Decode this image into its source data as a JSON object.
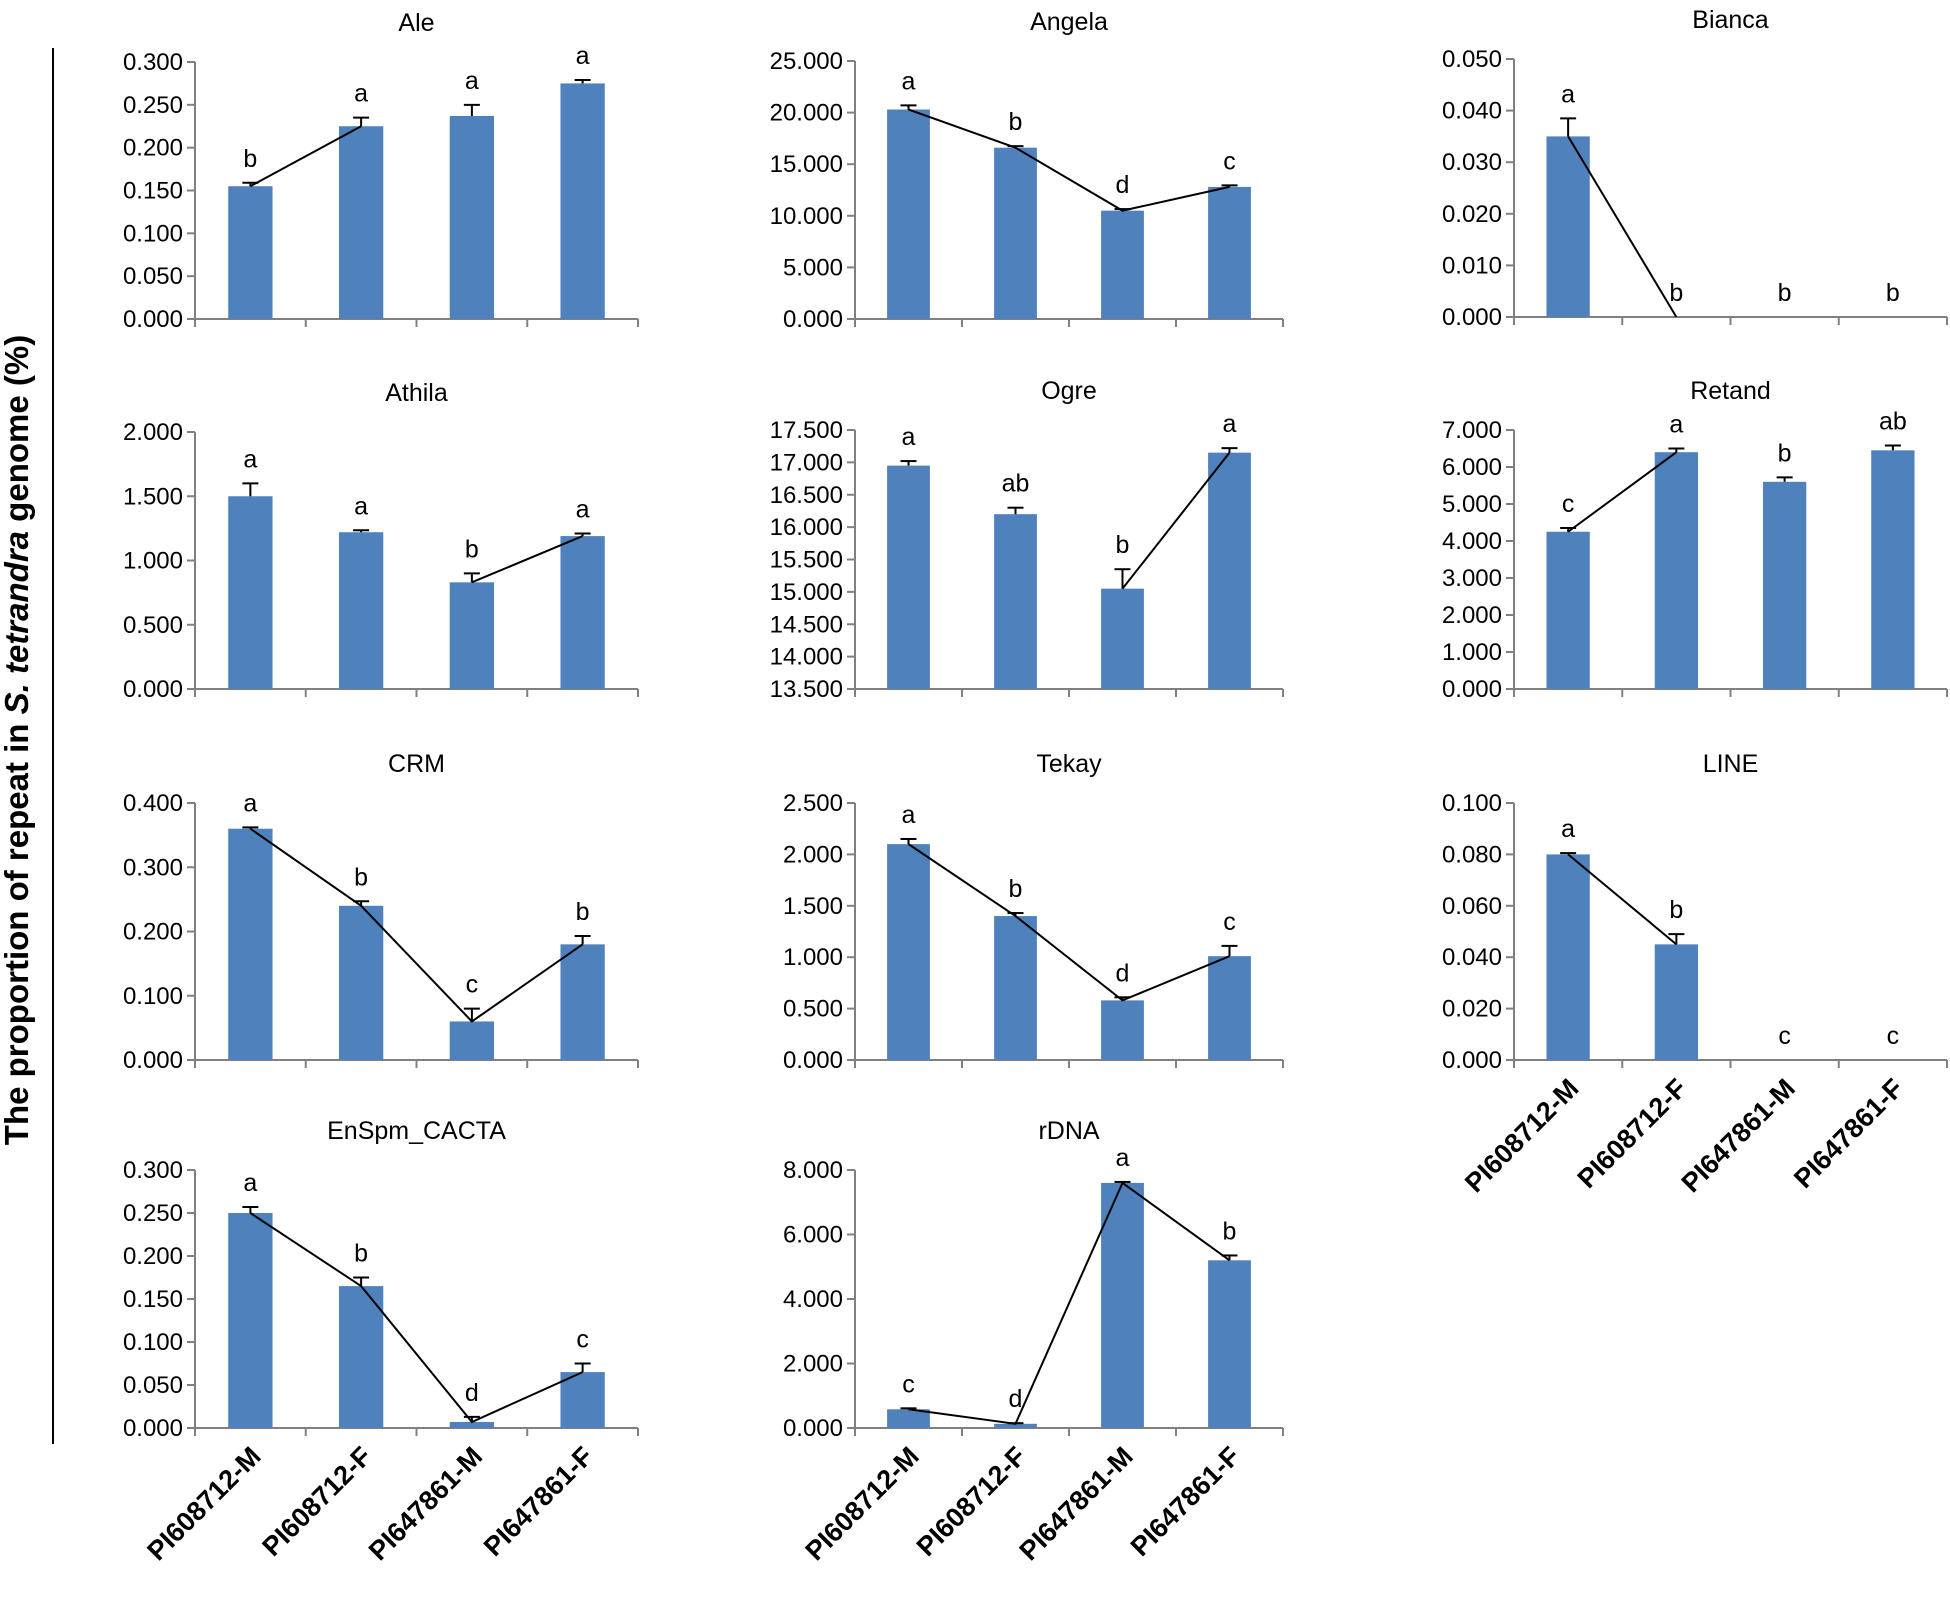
{
  "ylabel": {
    "prefix": "The proportion of repeat in ",
    "species": "S. tetrandra",
    "suffix": " genome (%)"
  },
  "colors": {
    "bar": "#4f81bd",
    "axis": "#808080",
    "line": "#000000"
  },
  "chart_data": [
    {
      "type": "bar",
      "title": "Ale",
      "categories": [
        "PI608712-M",
        "PI608712-F",
        "PI647861-M",
        "PI647861-F"
      ],
      "values": [
        0.155,
        0.225,
        0.237,
        0.275
      ],
      "errors": [
        0.004,
        0.01,
        0.013,
        0.004
      ],
      "significance": [
        "b",
        "a",
        "a",
        "a"
      ],
      "ylim": [
        0,
        0.3
      ],
      "ticks": [
        "0.000",
        "0.050",
        "0.100",
        "0.150",
        "0.200",
        "0.250",
        "0.300"
      ],
      "trend_line": [
        0,
        1
      ]
    },
    {
      "type": "bar",
      "title": "Angela",
      "categories": [
        "PI608712-M",
        "PI608712-F",
        "PI647861-M",
        "PI647861-F"
      ],
      "values": [
        20.3,
        16.6,
        10.5,
        12.8
      ],
      "errors": [
        0.4,
        0.15,
        0.15,
        0.15
      ],
      "significance": [
        "a",
        "b",
        "d",
        "c"
      ],
      "ylim": [
        0,
        25
      ],
      "ticks": [
        "0.000",
        "5.000",
        "10.000",
        "15.000",
        "20.000",
        "25.000"
      ],
      "trend_line": [
        0,
        1,
        2,
        3
      ]
    },
    {
      "type": "bar",
      "title": "Bianca",
      "categories": [
        "PI608712-M",
        "PI608712-F",
        "PI647861-M",
        "PI647861-F"
      ],
      "values": [
        0.035,
        0,
        0,
        0
      ],
      "errors": [
        0.0035,
        0,
        0,
        0
      ],
      "significance": [
        "a",
        "b",
        "b",
        "b"
      ],
      "ylim": [
        0,
        0.05
      ],
      "ticks": [
        "0.000",
        "0.010",
        "0.020",
        "0.030",
        "0.040",
        "0.050"
      ],
      "trend_line": [
        0,
        1
      ]
    },
    {
      "type": "bar",
      "title": "Athila",
      "categories": [
        "PI608712-M",
        "PI608712-F",
        "PI647861-M",
        "PI647861-F"
      ],
      "values": [
        1.5,
        1.22,
        0.83,
        1.19
      ],
      "errors": [
        0.1,
        0.015,
        0.07,
        0.02
      ],
      "significance": [
        "a",
        "a",
        "b",
        "a"
      ],
      "ylim": [
        0,
        2
      ],
      "ticks": [
        "0.000",
        "0.500",
        "1.000",
        "1.500",
        "2.000"
      ],
      "trend_line": [
        2,
        3
      ]
    },
    {
      "type": "bar",
      "title": "Ogre",
      "categories": [
        "PI608712-M",
        "PI608712-F",
        "PI647861-M",
        "PI647861-F"
      ],
      "values": [
        16.95,
        16.2,
        15.05,
        17.15
      ],
      "errors": [
        0.07,
        0.1,
        0.3,
        0.07
      ],
      "significance": [
        "a",
        "ab",
        "b",
        "a"
      ],
      "ylim": [
        13.5,
        17.5
      ],
      "ticks": [
        "13.500",
        "14.000",
        "14.500",
        "15.000",
        "15.500",
        "16.000",
        "16.500",
        "17.000",
        "17.500"
      ],
      "trend_line": [
        2,
        3
      ]
    },
    {
      "type": "bar",
      "title": "Retand",
      "categories": [
        "PI608712-M",
        "PI608712-F",
        "PI647861-M",
        "PI647861-F"
      ],
      "values": [
        4.25,
        6.4,
        5.6,
        6.45
      ],
      "errors": [
        0.1,
        0.1,
        0.12,
        0.13
      ],
      "significance": [
        "c",
        "a",
        "b",
        "ab"
      ],
      "ylim": [
        0,
        7
      ],
      "ticks": [
        "0.000",
        "1.000",
        "2.000",
        "3.000",
        "4.000",
        "5.000",
        "6.000",
        "7.000"
      ],
      "trend_line": [
        0,
        1
      ]
    },
    {
      "type": "bar",
      "title": "CRM",
      "categories": [
        "PI608712-M",
        "PI608712-F",
        "PI647861-M",
        "PI647861-F"
      ],
      "values": [
        0.36,
        0.24,
        0.06,
        0.18
      ],
      "errors": [
        0.002,
        0.007,
        0.02,
        0.013
      ],
      "significance": [
        "a",
        "b",
        "c",
        "b"
      ],
      "ylim": [
        0,
        0.4
      ],
      "ticks": [
        "0.000",
        "0.100",
        "0.200",
        "0.300",
        "0.400"
      ],
      "trend_line": [
        0,
        1,
        2,
        3
      ]
    },
    {
      "type": "bar",
      "title": "Tekay",
      "categories": [
        "PI608712-M",
        "PI608712-F",
        "PI647861-M",
        "PI647861-F"
      ],
      "values": [
        2.1,
        1.4,
        0.58,
        1.01
      ],
      "errors": [
        0.05,
        0.03,
        0.03,
        0.1
      ],
      "significance": [
        "a",
        "b",
        "d",
        "c"
      ],
      "ylim": [
        0,
        2.5
      ],
      "ticks": [
        "0.000",
        "0.500",
        "1.000",
        "1.500",
        "2.000",
        "2.500"
      ],
      "trend_line": [
        0,
        1,
        2,
        3
      ]
    },
    {
      "type": "bar",
      "title": "LINE",
      "categories": [
        "PI608712-M",
        "PI608712-F",
        "PI647861-M",
        "PI647861-F"
      ],
      "values": [
        0.08,
        0.045,
        0,
        0
      ],
      "errors": [
        0.0005,
        0.004,
        0,
        0
      ],
      "significance": [
        "a",
        "b",
        "c",
        "c"
      ],
      "ylim": [
        0,
        0.1
      ],
      "ticks": [
        "0.000",
        "0.020",
        "0.040",
        "0.060",
        "0.080",
        "0.100"
      ],
      "trend_line": [
        0,
        1
      ]
    },
    {
      "type": "bar",
      "title": "EnSpm_CACTA",
      "categories": [
        "PI608712-M",
        "PI608712-F",
        "PI647861-M",
        "PI647861-F"
      ],
      "values": [
        0.25,
        0.165,
        0.007,
        0.065
      ],
      "errors": [
        0.007,
        0.01,
        0.006,
        0.01
      ],
      "significance": [
        "a",
        "b",
        "d",
        "c"
      ],
      "ylim": [
        0,
        0.3
      ],
      "ticks": [
        "0.000",
        "0.050",
        "0.100",
        "0.150",
        "0.200",
        "0.250",
        "0.300"
      ],
      "trend_line": [
        0,
        1,
        2,
        3
      ]
    },
    {
      "type": "bar",
      "title": "rDNA",
      "categories": [
        "PI608712-M",
        "PI608712-F",
        "PI647861-M",
        "PI647861-F"
      ],
      "values": [
        0.58,
        0.13,
        7.6,
        5.2
      ],
      "errors": [
        0.03,
        0.02,
        0.03,
        0.15
      ],
      "significance": [
        "c",
        "d",
        "a",
        "b"
      ],
      "ylim": [
        0,
        8
      ],
      "ticks": [
        "0.000",
        "2.000",
        "4.000",
        "6.000",
        "8.000"
      ],
      "trend_line": [
        0,
        1,
        2,
        3
      ]
    }
  ]
}
